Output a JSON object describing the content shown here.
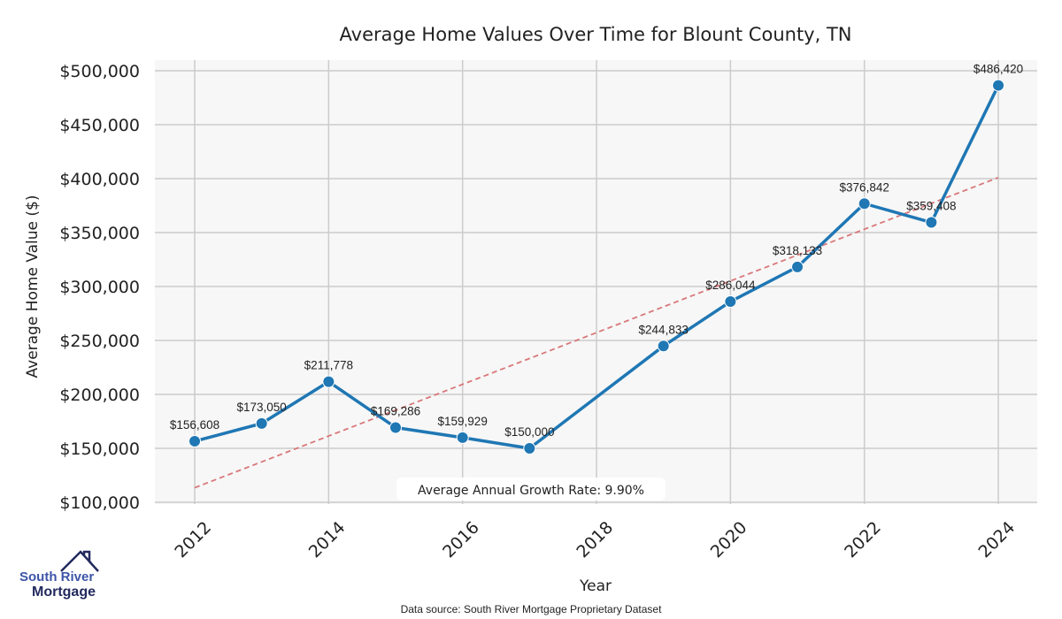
{
  "chart_data": {
    "type": "line",
    "title": "Average Home Values Over Time for Blount County, TN",
    "xlabel": "Year",
    "ylabel": "Average Home Value ($)",
    "xlim": [
      2011.4,
      2024.6
    ],
    "ylim": [
      100000,
      500000
    ],
    "x_ticks": [
      2012,
      2014,
      2016,
      2018,
      2020,
      2022,
      2024
    ],
    "y_ticks": [
      100000,
      150000,
      200000,
      250000,
      300000,
      350000,
      400000,
      450000,
      500000
    ],
    "y_tick_labels": [
      "$100,000",
      "$150,000",
      "$200,000",
      "$250,000",
      "$300,000",
      "$350,000",
      "$400,000",
      "$450,000",
      "$500,000"
    ],
    "grid": true,
    "series": [
      {
        "name": "Average Home Value",
        "color": "#1f77b4",
        "x": [
          2012,
          2013,
          2014,
          2015,
          2016,
          2017,
          2019,
          2020,
          2021,
          2022,
          2023,
          2024
        ],
        "values": [
          156608,
          173050,
          211778,
          169286,
          159929,
          150000,
          244833,
          286044,
          318133,
          376842,
          359408,
          486420
        ],
        "labels": [
          "$156,608",
          "$173,050",
          "$211,778",
          "$169,286",
          "$159,929",
          "$150,000",
          "$244,833",
          "$286,044",
          "$318,133",
          "$376,842",
          "$359,408",
          "$486,420"
        ]
      }
    ],
    "trend_line": {
      "color": "#d9777a",
      "x": [
        2012,
        2024
      ],
      "values": [
        113500,
        401000
      ]
    },
    "annotation": "Average Annual Growth Rate: 9.90%"
  },
  "logo": {
    "line1": "South River",
    "line2": "Mortgage"
  },
  "source": "Data source: South River Mortgage Proprietary Dataset"
}
